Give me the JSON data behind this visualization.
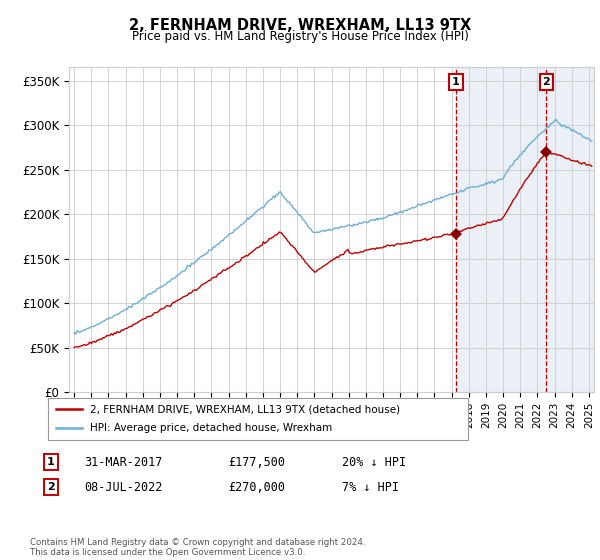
{
  "title": "2, FERNHAM DRIVE, WREXHAM, LL13 9TX",
  "subtitle": "Price paid vs. HM Land Registry's House Price Index (HPI)",
  "footnote": "Contains HM Land Registry data © Crown copyright and database right 2024.\nThis data is licensed under the Open Government Licence v3.0.",
  "ylabel_ticks": [
    "£0",
    "£50K",
    "£100K",
    "£150K",
    "£200K",
    "£250K",
    "£300K",
    "£350K"
  ],
  "ytick_values": [
    0,
    50000,
    100000,
    150000,
    200000,
    250000,
    300000,
    350000
  ],
  "ylim": [
    0,
    365000
  ],
  "xlim_start": 1994.7,
  "xlim_end": 2025.3,
  "hpi_color": "#6baed6",
  "price_color": "#c00000",
  "marker_color": "#8b0000",
  "vline_color": "#c00000",
  "shade_color": "#dce6f1",
  "transaction1_date": 2017.25,
  "transaction1_price": 177500,
  "transaction2_date": 2022.52,
  "transaction2_price": 270000,
  "legend_label_price": "2, FERNHAM DRIVE, WREXHAM, LL13 9TX (detached house)",
  "legend_label_hpi": "HPI: Average price, detached house, Wrexham",
  "annotation1_label": "1",
  "annotation1_date": "31-MAR-2017",
  "annotation1_price": "£177,500",
  "annotation1_note": "20% ↓ HPI",
  "annotation2_label": "2",
  "annotation2_date": "08-JUL-2022",
  "annotation2_price": "£270,000",
  "annotation2_note": "7% ↓ HPI",
  "background_color": "#ffffff",
  "grid_color": "#cccccc"
}
